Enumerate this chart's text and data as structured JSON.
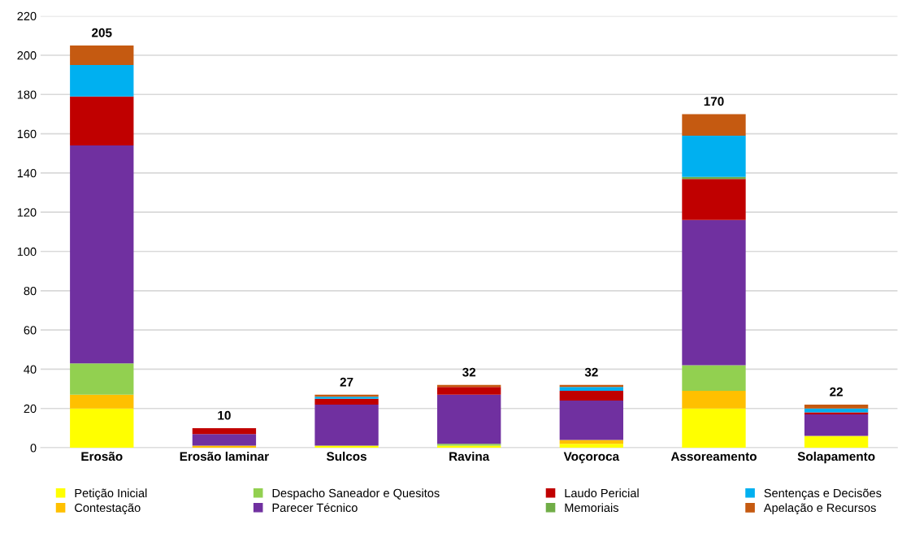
{
  "chart_data": {
    "type": "bar",
    "stacked": true,
    "categories": [
      "Erosão",
      "Erosão laminar",
      "Sulcos",
      "Ravina",
      "Voçoroca",
      "Assoreamento",
      "Solapamento"
    ],
    "series": [
      {
        "name": "Petição Inicial",
        "color": "#ffff00",
        "values": [
          20,
          0,
          1,
          1,
          2,
          20,
          6
        ]
      },
      {
        "name": "Contestação",
        "color": "#ffc000",
        "values": [
          7,
          1,
          0,
          0,
          2,
          9,
          0
        ]
      },
      {
        "name": "Despacho Saneador e Quesitos",
        "color": "#92d050",
        "values": [
          16,
          0,
          0,
          1,
          0,
          13,
          0
        ]
      },
      {
        "name": "Parecer Técnico",
        "color": "#7030a0",
        "values": [
          111,
          6,
          21,
          25,
          20,
          74,
          11
        ]
      },
      {
        "name": "Laudo Pericial",
        "color": "#c00000",
        "values": [
          25,
          3,
          3,
          4,
          5,
          21,
          1
        ]
      },
      {
        "name": "Memoriais",
        "color": "#70ad47",
        "values": [
          0,
          0,
          0,
          0,
          0,
          1,
          0
        ]
      },
      {
        "name": "Sentenças e Decisões",
        "color": "#00b0f0",
        "values": [
          16,
          0,
          1,
          0,
          2,
          21,
          2
        ]
      },
      {
        "name": "Apelação e Recursos",
        "color": "#c55a11",
        "values": [
          10,
          0,
          1,
          1,
          1,
          11,
          2
        ]
      }
    ],
    "totals": [
      "205",
      "10",
      "27",
      "32",
      "32",
      "170",
      "22"
    ],
    "ylim": [
      0,
      220
    ],
    "yticks": [
      0,
      20,
      40,
      60,
      80,
      100,
      120,
      140,
      160,
      180,
      200,
      220
    ],
    "grid": "y",
    "legend": "bottom"
  }
}
